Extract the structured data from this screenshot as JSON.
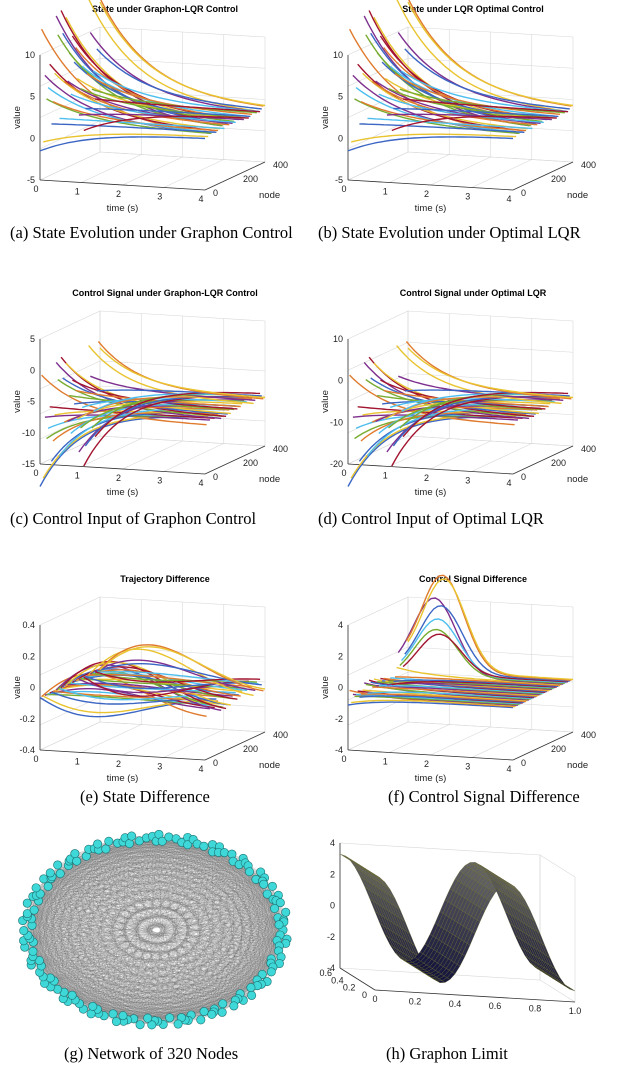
{
  "figure": {
    "panels": [
      {
        "id": "a",
        "title": "State under Graphon-LQR Control",
        "caption": "(a)  State Evolution under Graphon Control",
        "yticks": [
          "10",
          "5",
          "0",
          "-5"
        ],
        "xticks": [
          "0",
          "1",
          "2",
          "3",
          "4"
        ],
        "nodeticks": [
          "0",
          "200",
          "400"
        ],
        "xlabel": "time (s)",
        "ylabel": "value",
        "zlabel": "node"
      },
      {
        "id": "b",
        "title": "State under LQR Optimal Control",
        "caption": "(b) State Evolution under Optimal LQR",
        "yticks": [
          "10",
          "5",
          "0",
          "-5"
        ],
        "xticks": [
          "0",
          "1",
          "2",
          "3",
          "4"
        ],
        "nodeticks": [
          "0",
          "200",
          "400"
        ],
        "xlabel": "time (s)",
        "ylabel": "value",
        "zlabel": "node"
      },
      {
        "id": "c",
        "title": "Control Signal under Graphon-LQR Control",
        "caption": "(c) Control Input of Graphon Control",
        "yticks": [
          "5",
          "0",
          "-5",
          "-10",
          "-15"
        ],
        "xticks": [
          "0",
          "1",
          "2",
          "3",
          "4"
        ],
        "nodeticks": [
          "0",
          "200",
          "400"
        ],
        "xlabel": "time (s)",
        "ylabel": "value",
        "zlabel": "node"
      },
      {
        "id": "d",
        "title": "Control Signal under Optimal LQR",
        "caption": "(d) Control Input of Optimal LQR",
        "yticks": [
          "10",
          "0",
          "-10",
          "-20"
        ],
        "xticks": [
          "0",
          "1",
          "2",
          "3",
          "4"
        ],
        "nodeticks": [
          "0",
          "200",
          "400"
        ],
        "xlabel": "time (s)",
        "ylabel": "value",
        "zlabel": "node"
      },
      {
        "id": "e",
        "title": "Trajectory Difference",
        "caption": "(e) State Difference",
        "yticks": [
          "0.4",
          "0.2",
          "0",
          "-0.2",
          "-0.4"
        ],
        "xticks": [
          "0",
          "1",
          "2",
          "3",
          "4"
        ],
        "nodeticks": [
          "0",
          "200",
          "400"
        ],
        "xlabel": "time (s)",
        "ylabel": "value",
        "zlabel": "node"
      },
      {
        "id": "f",
        "title": "Control Signal Difference",
        "caption": "(f) Control Signal Difference",
        "yticks": [
          "4",
          "2",
          "0",
          "-2",
          "-4"
        ],
        "xticks": [
          "0",
          "1",
          "2",
          "3",
          "4"
        ],
        "nodeticks": [
          "0",
          "200",
          "400"
        ],
        "xlabel": "time (s)",
        "ylabel": "value",
        "zlabel": "node"
      }
    ],
    "network": {
      "caption": "(g) Network of 320 Nodes",
      "node_color": "#3fd8d8",
      "node_count": 320
    },
    "graphon": {
      "caption": "(h) Graphon Limit",
      "zticks": [
        "4",
        "2",
        "0",
        "-2",
        "-4"
      ],
      "xticks": [
        "0",
        "0.2",
        "0.4",
        "0.6",
        "0.8",
        "1.0"
      ],
      "yticks": [
        "0",
        "0.2",
        "0.4",
        "0.6"
      ]
    }
  }
}
